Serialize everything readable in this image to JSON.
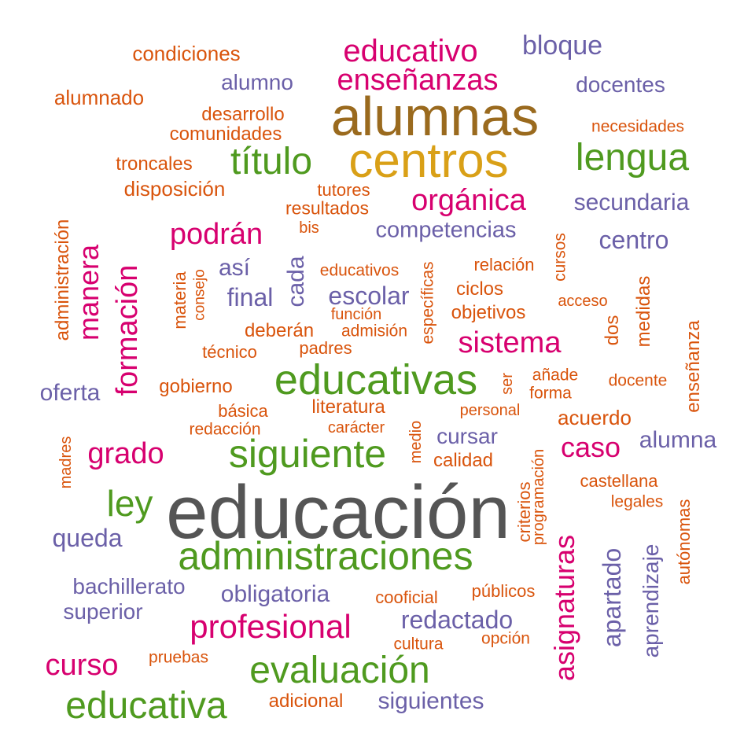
{
  "palette": {
    "grey": "#555555",
    "brown": "#9a6a1e",
    "gold": "#d9a017",
    "green": "#4f9a1f",
    "magenta": "#d7006f",
    "purple": "#6b60a8",
    "orange": "#d9540c"
  },
  "words": [
    {
      "text": "educación",
      "color": "grey"
    },
    {
      "text": "alumnas",
      "color": "brown"
    },
    {
      "text": "centros",
      "color": "gold"
    },
    {
      "text": "educativas",
      "color": "green"
    },
    {
      "text": "siguiente",
      "color": "green"
    },
    {
      "text": "administraciones",
      "color": "green"
    },
    {
      "text": "título",
      "color": "green"
    },
    {
      "text": "lengua",
      "color": "green"
    },
    {
      "text": "evaluación",
      "color": "green"
    },
    {
      "text": "educativa",
      "color": "green"
    },
    {
      "text": "ley",
      "color": "green"
    },
    {
      "text": "educativo",
      "color": "magenta"
    },
    {
      "text": "enseñanzas",
      "color": "magenta"
    },
    {
      "text": "orgánica",
      "color": "magenta"
    },
    {
      "text": "podrán",
      "color": "magenta"
    },
    {
      "text": "sistema",
      "color": "magenta"
    },
    {
      "text": "profesional",
      "color": "magenta"
    },
    {
      "text": "grado",
      "color": "magenta"
    },
    {
      "text": "caso",
      "color": "magenta"
    },
    {
      "text": "curso",
      "color": "magenta"
    },
    {
      "text": "formación",
      "color": "magenta"
    },
    {
      "text": "manera",
      "color": "magenta"
    },
    {
      "text": "asignaturas",
      "color": "magenta"
    },
    {
      "text": "bloque",
      "color": "purple"
    },
    {
      "text": "alumno",
      "color": "purple"
    },
    {
      "text": "docentes",
      "color": "purple"
    },
    {
      "text": "secundaria",
      "color": "purple"
    },
    {
      "text": "competencias",
      "color": "purple"
    },
    {
      "text": "centro",
      "color": "purple"
    },
    {
      "text": "así",
      "color": "purple"
    },
    {
      "text": "final",
      "color": "purple"
    },
    {
      "text": "escolar",
      "color": "purple"
    },
    {
      "text": "oferta",
      "color": "purple"
    },
    {
      "text": "cursar",
      "color": "purple"
    },
    {
      "text": "alumna",
      "color": "purple"
    },
    {
      "text": "queda",
      "color": "purple"
    },
    {
      "text": "bachillerato",
      "color": "purple"
    },
    {
      "text": "obligatoria",
      "color": "purple"
    },
    {
      "text": "superior",
      "color": "purple"
    },
    {
      "text": "redactado",
      "color": "purple"
    },
    {
      "text": "siguientes",
      "color": "purple"
    },
    {
      "text": "cada",
      "color": "purple"
    },
    {
      "text": "apartado",
      "color": "purple"
    },
    {
      "text": "aprendizaje",
      "color": "purple"
    },
    {
      "text": "condiciones",
      "color": "orange"
    },
    {
      "text": "alumnado",
      "color": "orange"
    },
    {
      "text": "desarrollo",
      "color": "orange"
    },
    {
      "text": "comunidades",
      "color": "orange"
    },
    {
      "text": "necesidades",
      "color": "orange"
    },
    {
      "text": "troncales",
      "color": "orange"
    },
    {
      "text": "disposición",
      "color": "orange"
    },
    {
      "text": "tutores",
      "color": "orange"
    },
    {
      "text": "resultados",
      "color": "orange"
    },
    {
      "text": "bis",
      "color": "orange"
    },
    {
      "text": "educativos",
      "color": "orange"
    },
    {
      "text": "relación",
      "color": "orange"
    },
    {
      "text": "ciclos",
      "color": "orange"
    },
    {
      "text": "acceso",
      "color": "orange"
    },
    {
      "text": "función",
      "color": "orange"
    },
    {
      "text": "objetivos",
      "color": "orange"
    },
    {
      "text": "deberán",
      "color": "orange"
    },
    {
      "text": "admisión",
      "color": "orange"
    },
    {
      "text": "padres",
      "color": "orange"
    },
    {
      "text": "técnico",
      "color": "orange"
    },
    {
      "text": "gobierno",
      "color": "orange"
    },
    {
      "text": "añade",
      "color": "orange"
    },
    {
      "text": "forma",
      "color": "orange"
    },
    {
      "text": "docente",
      "color": "orange"
    },
    {
      "text": "básica",
      "color": "orange"
    },
    {
      "text": "literatura",
      "color": "orange"
    },
    {
      "text": "personal",
      "color": "orange"
    },
    {
      "text": "redacción",
      "color": "orange"
    },
    {
      "text": "carácter",
      "color": "orange"
    },
    {
      "text": "acuerdo",
      "color": "orange"
    },
    {
      "text": "calidad",
      "color": "orange"
    },
    {
      "text": "castellana",
      "color": "orange"
    },
    {
      "text": "legales",
      "color": "orange"
    },
    {
      "text": "cooficial",
      "color": "orange"
    },
    {
      "text": "públicos",
      "color": "orange"
    },
    {
      "text": "cultura",
      "color": "orange"
    },
    {
      "text": "opción",
      "color": "orange"
    },
    {
      "text": "pruebas",
      "color": "orange"
    },
    {
      "text": "adicional",
      "color": "orange"
    },
    {
      "text": "administración",
      "color": "orange"
    },
    {
      "text": "materia",
      "color": "orange"
    },
    {
      "text": "consejo",
      "color": "orange"
    },
    {
      "text": "específicas",
      "color": "orange"
    },
    {
      "text": "cursos",
      "color": "orange"
    },
    {
      "text": "dos",
      "color": "orange"
    },
    {
      "text": "medidas",
      "color": "orange"
    },
    {
      "text": "enseñanza",
      "color": "orange"
    },
    {
      "text": "ser",
      "color": "orange"
    },
    {
      "text": "medio",
      "color": "orange"
    },
    {
      "text": "madres",
      "color": "orange"
    },
    {
      "text": "criterios",
      "color": "orange"
    },
    {
      "text": "programación",
      "color": "orange"
    },
    {
      "text": "autónomas",
      "color": "orange"
    }
  ]
}
